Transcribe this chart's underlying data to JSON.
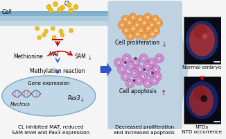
{
  "bg_color": "#f5f5f5",
  "cell_membrane_color1": "#7aadca",
  "cell_membrane_color2": "#aac8dc",
  "cell_membrane_color3": "#c8dde8",
  "left_bg": "#f5f5f5",
  "middle_panel_bg": "#b8cfe0",
  "nucleus_fill": "#c0d8e8",
  "nucleus_stroke": "#80a8c0",
  "cl_dot_color": "#f0c020",
  "cl_dot_edge": "#c8a000",
  "arrow_red": "#cc0000",
  "arrow_blue": "#3355cc",
  "arrow_purple": "#884499",
  "font_size_tiny": 5.0,
  "font_size_small": 5.5,
  "font_size_label": 5.2,
  "proliferation_cell_fill": "#f0a050",
  "proliferation_cell_edge": "#c87828",
  "proliferation_cell_nucleus": "#f8d090",
  "apoptosis_cell_fill": "#cc88cc",
  "apoptosis_cell_edge": "#994499",
  "apoptosis_cell_nucleus": "#e8b8e8",
  "embryo_bg": "#0a0a14",
  "embryo1_body": "#c05050",
  "embryo1_blue": "#5060b0",
  "embryo2_body": "#b04040",
  "embryo2_blue": "#4050a0",
  "down_arrow_purple": "↓",
  "up_arrow_red": "↑",
  "caption1a": "CL inhibited MAT, reduced",
  "caption1b": "SAM level and Pax3 expression",
  "caption2a": "Decreased proliferation",
  "caption2b": "and increased apoptosis",
  "caption3a": "Normal embryo",
  "caption3b": "NTDs",
  "caption3c": "NTD occurrence"
}
